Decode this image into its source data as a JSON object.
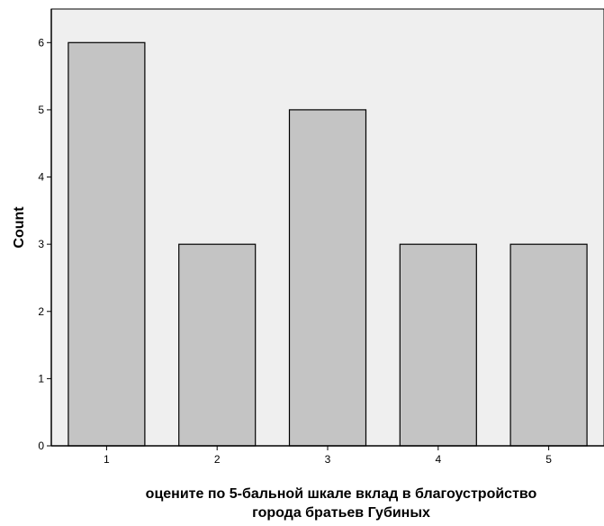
{
  "chart_data": {
    "type": "bar",
    "categories": [
      "1",
      "2",
      "3",
      "4",
      "5"
    ],
    "values": [
      6,
      3,
      5,
      3,
      3
    ],
    "xlabel_lines": [
      "оцените по 5-бальной шкале вклад в благоустройство",
      "города братьев Губиных"
    ],
    "ylabel": "Count",
    "ylim": [
      0,
      6.5
    ],
    "yticks": [
      "0",
      "1",
      "2",
      "3",
      "4",
      "5",
      "6"
    ],
    "grid": false,
    "colors": {
      "plot_background": "#efefef",
      "bar_fill": "#c4c4c4",
      "bar_stroke": "#000000"
    }
  }
}
